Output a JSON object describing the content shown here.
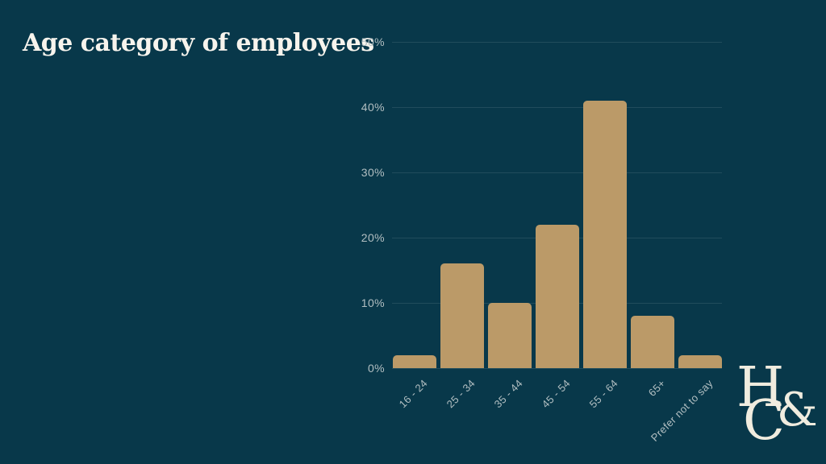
{
  "page": {
    "background_color": "#08384a",
    "accent_color": "#bb9a68",
    "title_color": "#f7f4ed",
    "tick_label_color": "#b2bfc2",
    "logo_color": "#f0ecdf"
  },
  "title": "Age category of employees",
  "logo": {
    "letter_top": "H",
    "letter_bottom": "C",
    "ampersand": "&"
  },
  "chart_data": {
    "type": "bar",
    "title": "Age category of employees",
    "categories": [
      "16 - 24",
      "25 - 34",
      "35 - 44",
      "45 - 54",
      "55 - 64",
      "65+",
      "Prefer not to say"
    ],
    "values": [
      2,
      16,
      10,
      22,
      41,
      8,
      2
    ],
    "value_unit": "%",
    "xlabel": "",
    "ylabel": "",
    "ylim": [
      0,
      50
    ],
    "ytick_step": 10,
    "ytick_labels": [
      "0%",
      "10%",
      "20%",
      "30%",
      "40%",
      "50%"
    ],
    "grid": true,
    "legend": false,
    "bar_color": "#bb9a68",
    "gridline_color": "rgba(255,255,255,0.10)",
    "xtick_rotation_deg": -45
  }
}
